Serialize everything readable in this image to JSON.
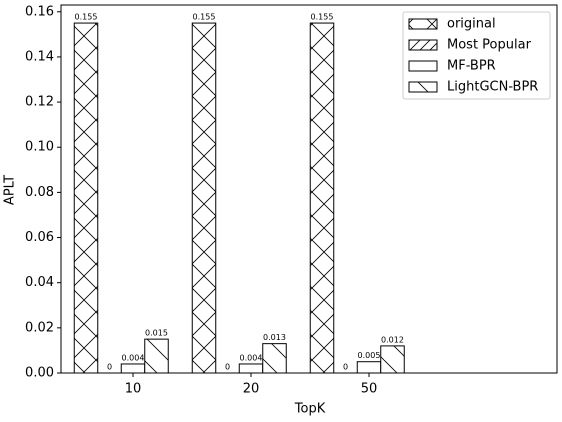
{
  "chart_data": {
    "type": "bar",
    "x_label": "TopK",
    "y_label": "APLT",
    "categories": [
      "10",
      "20",
      "50"
    ],
    "series": [
      {
        "name": "original",
        "color": "#ffffff",
        "hatch": "x",
        "values": [
          0.155,
          0.155,
          0.155
        ]
      },
      {
        "name": "Most Popular",
        "color": "#ffffff",
        "hatch": "/",
        "values": [
          0,
          0,
          0
        ]
      },
      {
        "name": "MF-BPR",
        "color": "#ffffff",
        "hatch": "",
        "values": [
          0.004,
          0.004,
          0.005
        ]
      },
      {
        "name": "LightGCN-BPR",
        "color": "#ffffff",
        "hatch": "\\",
        "values": [
          0.015,
          0.013,
          0.012
        ]
      }
    ],
    "ylim": [
      0,
      0.163
    ],
    "yticks": [
      {
        "value": 0,
        "label": "0.00"
      },
      {
        "value": 0.02,
        "label": "0.02"
      },
      {
        "value": 0.04,
        "label": "0.04"
      },
      {
        "value": 0.06,
        "label": "0.06"
      },
      {
        "value": 0.08,
        "label": "0.08"
      },
      {
        "value": 0.1,
        "label": "0.10"
      },
      {
        "value": 0.12,
        "label": "0.12"
      },
      {
        "value": 0.14,
        "label": "0.14"
      },
      {
        "value": 0.16,
        "label": "0.16"
      }
    ],
    "legend": "upper right"
  }
}
